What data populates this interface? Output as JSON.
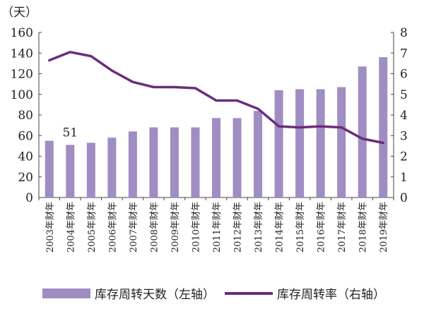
{
  "chart_data": {
    "type": "bar",
    "y_unit_label": "（天）",
    "categories": [
      "2003年财年",
      "2004年财年",
      "2005年财年",
      "2006年财年",
      "2007年财年",
      "2008年财年",
      "2009年财年",
      "2010年财年",
      "2011年财年",
      "2012年财年",
      "2013年财年",
      "2014年财年",
      "2015年财年",
      "2016年财年",
      "2017年财年",
      "2018年财年",
      "2019年财年"
    ],
    "series": [
      {
        "name": "库存周转天数（左轴）",
        "type": "bar",
        "axis": "left",
        "color": "#a08dc2",
        "values": [
          55,
          51,
          53,
          58,
          64,
          68,
          68,
          68,
          77,
          77,
          84,
          104,
          105,
          105,
          107,
          127,
          136
        ]
      },
      {
        "name": "库存周转率（右轴）",
        "type": "line",
        "axis": "right",
        "color": "#6b2d7b",
        "values": [
          6.65,
          7.05,
          6.85,
          6.15,
          5.6,
          5.35,
          5.35,
          5.3,
          4.7,
          4.7,
          4.3,
          3.45,
          3.4,
          3.45,
          3.4,
          2.85,
          2.65
        ]
      }
    ],
    "annotations": [
      {
        "category": "2004年财年",
        "text": "51"
      }
    ],
    "y_left": {
      "min": 0,
      "max": 160,
      "ticks": [
        "0",
        "20",
        "40",
        "60",
        "80",
        "100",
        "120",
        "140",
        "160"
      ]
    },
    "y_right": {
      "min": 0,
      "max": 8,
      "ticks": [
        "0",
        "1",
        "2",
        "3",
        "4",
        "5",
        "6",
        "7",
        "8"
      ]
    },
    "grid": false,
    "legend_position": "bottom"
  }
}
